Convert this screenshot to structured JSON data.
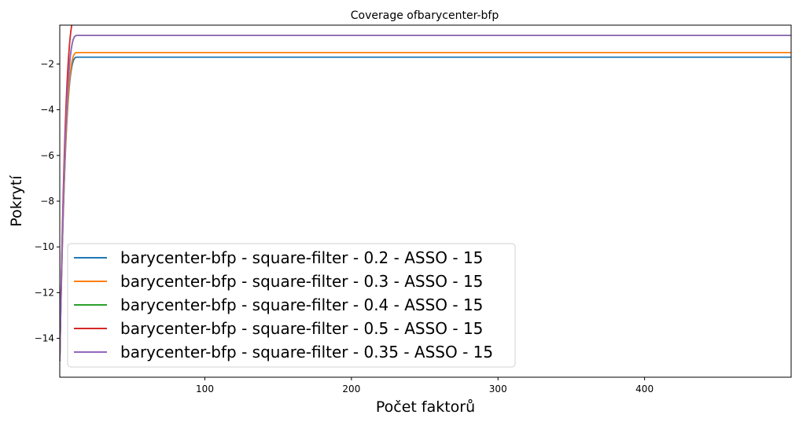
{
  "chart_data": {
    "type": "line",
    "title": "Coverage ofbarycenter-bfp",
    "xlabel": "Počet faktorů",
    "ylabel": "Pokrytí",
    "xlim": [
      1,
      500
    ],
    "ylim": [
      -15.7,
      -0.3
    ],
    "xticks": [
      100,
      200,
      300,
      400
    ],
    "yticks": [
      -2,
      -4,
      -6,
      -8,
      -10,
      -12,
      -14
    ],
    "legend_position": "lower-left",
    "curve_start": -15.0,
    "series": [
      {
        "name": "barycenter-bfp - square-filter - 0.2 - ASSO - 15",
        "color": "#1f77b4",
        "final": -1.7,
        "saturation_x": 13
      },
      {
        "name": "barycenter-bfp - square-filter - 0.3 - ASSO - 15",
        "color": "#ff7f0e",
        "final": -1.5,
        "saturation_x": 13
      },
      {
        "name": "barycenter-bfp - square-filter - 0.4 - ASSO - 15",
        "color": "#2ca02c",
        "final": -0.75,
        "saturation_x": 13
      },
      {
        "name": "barycenter-bfp - square-filter - 0.5 - ASSO - 15",
        "color": "#d62728",
        "final": 0.2,
        "saturation_x": 13
      },
      {
        "name": "barycenter-bfp - square-filter - 0.35 - ASSO - 15",
        "color": "#9467bd",
        "final": -0.75,
        "saturation_x": 13
      }
    ]
  }
}
